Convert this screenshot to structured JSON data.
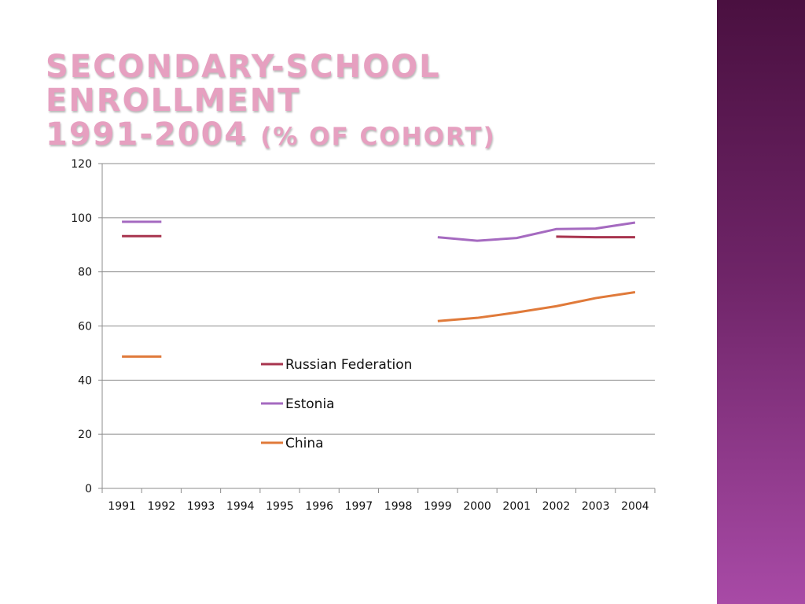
{
  "slide": {
    "title_line1": "SECONDARY-SCHOOL ENROLLMENT",
    "title_line2_main": "1991-2004",
    "title_line2_paren": "(% OF COHORT)",
    "accent_panel_color": "#6e2467",
    "title_color": "#e6a0c0"
  },
  "chart_data": {
    "type": "line",
    "x": [
      "1991",
      "1992",
      "1993",
      "1994",
      "1995",
      "1996",
      "1997",
      "1998",
      "1999",
      "2000",
      "2001",
      "2002",
      "2003",
      "2004"
    ],
    "ylim": [
      0,
      120
    ],
    "yticks": [
      "0",
      "20",
      "40",
      "60",
      "80",
      "100",
      "120"
    ],
    "grid": true,
    "legend_position": "center",
    "series": [
      {
        "name": "Russian Federation",
        "color": "#a8344e",
        "values": [
          93.2,
          93.2,
          null,
          null,
          null,
          null,
          null,
          null,
          null,
          null,
          null,
          93.0,
          92.8,
          92.8
        ]
      },
      {
        "name": "Estonia",
        "color": "#a56ac0",
        "values": [
          98.5,
          98.5,
          null,
          null,
          null,
          null,
          null,
          null,
          92.8,
          91.5,
          92.5,
          95.8,
          96.0,
          98.2
        ]
      },
      {
        "name": "China",
        "color": "#e07a3a",
        "values": [
          48.7,
          48.7,
          null,
          null,
          null,
          null,
          null,
          null,
          61.8,
          63.0,
          65.0,
          67.3,
          70.3,
          72.5
        ]
      }
    ]
  }
}
